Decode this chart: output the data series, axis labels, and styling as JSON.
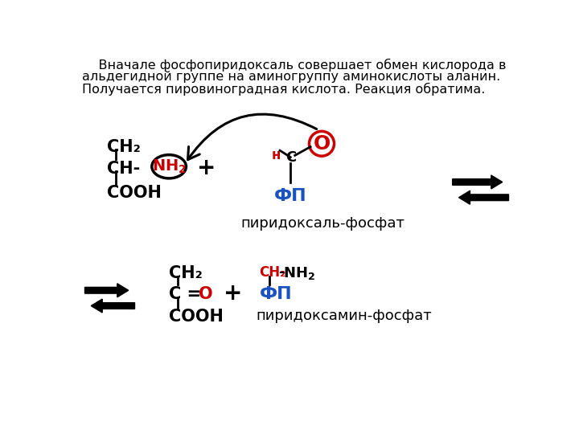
{
  "bg_color": "#ffffff",
  "text_color": "#000000",
  "red_color": "#cc0000",
  "blue_color": "#1a52c2",
  "desc1": "    Вначале фосфопиридоксаль совершает обмен кислорода в",
  "desc2": "альдегидной группе на аминогруппу аминокислоты аланин.",
  "desc3": "Получается пировиноградная кислота. Реакция обратима.",
  "pyridoxal_label": "пиридоксаль-фосфат",
  "pyridoxamine_label": "пиридоксамин-фосфат",
  "fp_label": "ФП",
  "alanine_ch2": "CH₂",
  "alanine_ch": "CH-",
  "alanine_nh2": "NH₂",
  "alanine_cooh": "COOH",
  "h_label": "н",
  "c_label": "C",
  "o_label": "О",
  "c_eq_o": "C = ",
  "o_red": "О",
  "ch2_red": "СН₂",
  "nh2_black": "NH₂",
  "bottom_ch2": "CH₂",
  "bottom_cooh": "COOH"
}
